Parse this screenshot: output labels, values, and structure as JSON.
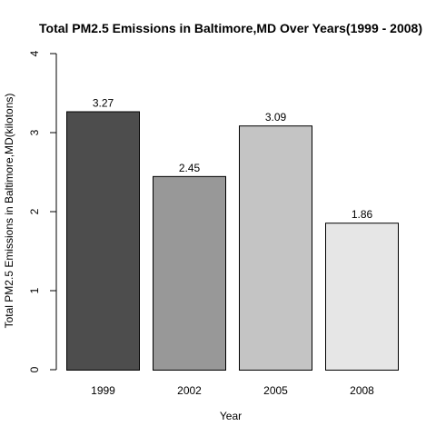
{
  "chart_data": {
    "type": "bar",
    "title": "Total PM2.5 Emissions in Baltimore,MD Over Years(1999 - 2008)",
    "xlabel": "Year",
    "ylabel": "Total PM2.5 Emissions in Baltimore,MD(kilotons)",
    "categories": [
      "1999",
      "2002",
      "2005",
      "2008"
    ],
    "values": [
      3.27,
      2.45,
      3.09,
      1.86
    ],
    "value_labels": [
      "3.27",
      "2.45",
      "3.09",
      "1.86"
    ],
    "bar_colors": [
      "#4d4d4d",
      "#989898",
      "#c4c4c4",
      "#e6e6e6"
    ],
    "ylim": [
      0,
      4
    ],
    "yticks": [
      "0",
      "1",
      "2",
      "3",
      "4"
    ],
    "grid": false
  }
}
